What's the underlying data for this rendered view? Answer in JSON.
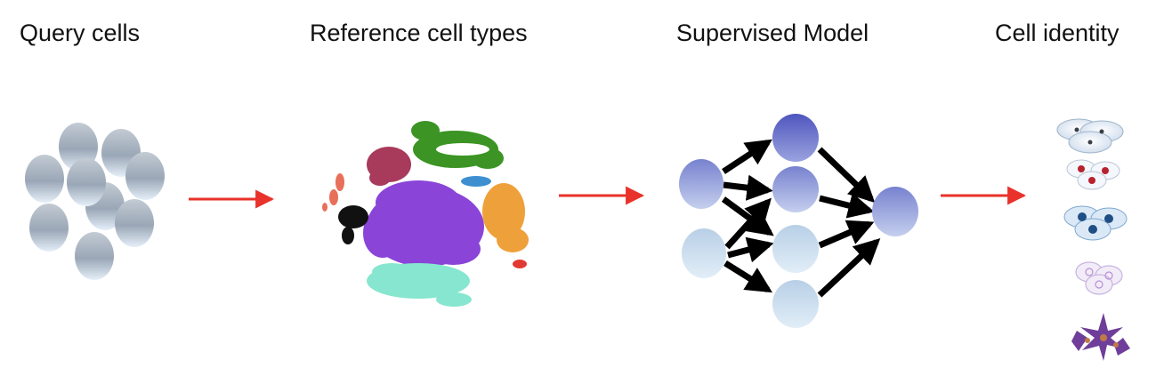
{
  "stages": [
    {
      "label": "Query cells"
    },
    {
      "label": "Reference cell types"
    },
    {
      "label": "Supervised Model"
    },
    {
      "label": "Cell identity"
    }
  ],
  "colors": {
    "arrow": "#e8322a",
    "nn_edge": "#000000",
    "query_cell_top": "#b9c2cd",
    "query_cell_bottom": "#dfe9f4",
    "node_dark": "#5b63c7",
    "node_mid": "#8b97d6",
    "node_light": "#cfe0ef",
    "cluster_purple": "#8a44d8",
    "cluster_green": "#3b9423",
    "cluster_orange": "#eea13a",
    "cluster_teal": "#86e6cf",
    "cluster_maroon": "#a83a5c",
    "cluster_black": "#111111",
    "cluster_salmon": "#e8705a",
    "cluster_blue": "#3d8fd0",
    "cluster_red": "#e23a33"
  },
  "icons": [
    "query-cell-icon",
    "tsne-cluster-icon",
    "neural-node-icon",
    "cell-type-icon"
  ]
}
